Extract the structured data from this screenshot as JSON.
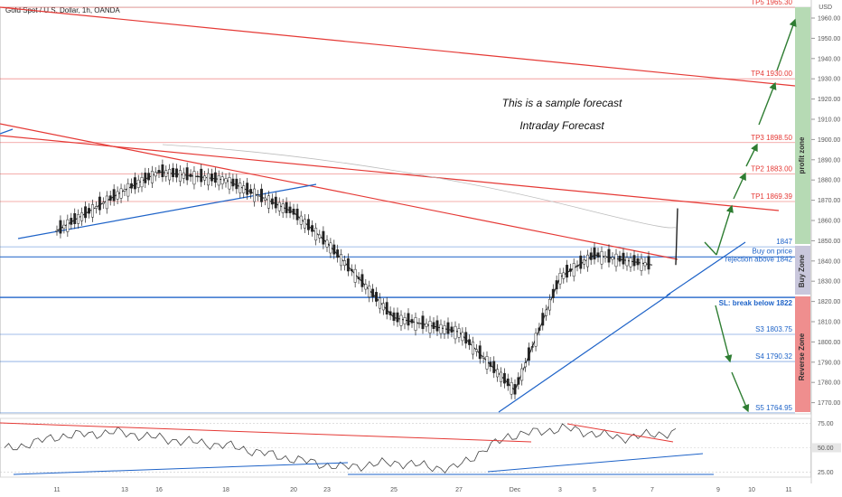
{
  "header": {
    "title": "Gold Spot / U.S. Dollar, 1h, OANDA",
    "currency": "USD"
  },
  "annotations": {
    "line1": "This is a sample forecast",
    "line2": "Intraday Forecast"
  },
  "zones": {
    "profit": "profit zone",
    "buy": "Buy Zone",
    "reverse": "Reverse Zone"
  },
  "colors": {
    "red": "#e53935",
    "blue": "#1e63c8",
    "green": "#2e7d32",
    "profit_zone": "#b6dab4",
    "buy_zone": "#c9c7dc",
    "reverse_zone": "#ef8e8e"
  },
  "chart_data": [
    {
      "type": "line",
      "title": "Gold Spot / U.S. Dollar, 1h, OANDA",
      "ylabel": "USD",
      "ylim": [
        1765,
        1968
      ],
      "y_ticks": [
        1770,
        1780,
        1790,
        1800,
        1810,
        1820,
        1830,
        1840,
        1850,
        1860,
        1870,
        1880,
        1890,
        1900,
        1910,
        1920,
        1930,
        1940,
        1950,
        1960
      ],
      "x_ticks": [
        "11",
        "13",
        "16",
        "18",
        "20",
        "23",
        "25",
        "27",
        "Dec",
        "3",
        "5",
        "7",
        "9",
        "10",
        "11"
      ],
      "x": [
        "11",
        "13",
        "16",
        "18",
        "20",
        "23",
        "25",
        "27",
        "Dec",
        "3",
        "5",
        "7"
      ],
      "series": [
        {
          "values": [
            1855,
            1875,
            1884,
            1880,
            1864,
            1849,
            1812,
            1805,
            1776,
            1832,
            1843,
            1838
          ]
        }
      ],
      "levels": [
        {
          "label": "TP5 1965.30",
          "value": 1965.3,
          "color": "#e53935"
        },
        {
          "label": "TP4 1930.00",
          "value": 1930.0,
          "color": "#e53935"
        },
        {
          "label": "TP3 1898.50",
          "value": 1898.5,
          "color": "#e53935"
        },
        {
          "label": "TP2 1883.00",
          "value": 1883.0,
          "color": "#e53935"
        },
        {
          "label": "TP1 1869.39",
          "value": 1869.39,
          "color": "#e53935"
        },
        {
          "label": "1847",
          "value": 1847,
          "color": "#1e63c8"
        },
        {
          "label": "Buy on price rejection above 1842",
          "value": 1842,
          "color": "#1e63c8"
        },
        {
          "label": "SL: break below 1822",
          "value": 1822,
          "color": "#1e63c8"
        },
        {
          "label": "S3 1803.75",
          "value": 1803.75,
          "color": "#1e63c8"
        },
        {
          "label": "S4 1790.32",
          "value": 1790.32,
          "color": "#1e63c8"
        },
        {
          "label": "S5 1764.95",
          "value": 1764.95,
          "color": "#1e63c8"
        }
      ]
    },
    {
      "type": "line",
      "ylim": [
        20,
        80
      ],
      "y_ticks": [
        "75.00",
        "50.00",
        "25.00"
      ],
      "series": [
        {
          "values": [
            48,
            62,
            66,
            58,
            52,
            40,
            30,
            35,
            28,
            62,
            70,
            60,
            66
          ]
        }
      ]
    }
  ]
}
